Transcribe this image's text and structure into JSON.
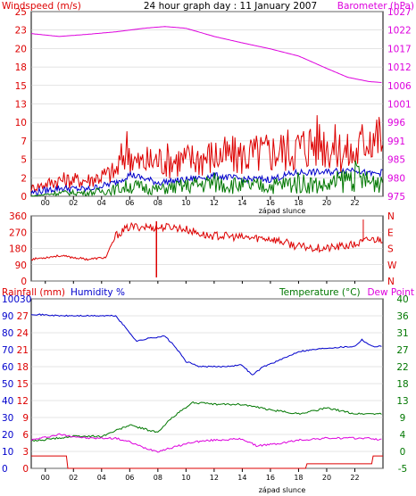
{
  "title": "24 hour graph day : 11 January 2007",
  "colors": {
    "red": "#dd0000",
    "magenta": "#dd00dd",
    "blue": "#0000cc",
    "green": "#007700",
    "axis": "#000000",
    "grid": "#c8c8c8"
  },
  "chart_data": [
    {
      "type": "line",
      "name": "wind-barometer",
      "labels": {
        "left": "Windspeed (m/s)",
        "right": "Barometer (hPa)",
        "center": "24 hour graph day : 11 January 2007"
      },
      "x_ticks": [
        "00",
        "02",
        "04",
        "06",
        "08",
        "10",
        "12",
        "14",
        "16",
        "18",
        "20",
        "22"
      ],
      "x_annotation": "západ slunce",
      "y_left_ticks": [
        "0",
        "2",
        "5",
        "7",
        "10",
        "13",
        "15",
        "18",
        "20",
        "23",
        "25"
      ],
      "y_left_range": [
        0,
        27
      ],
      "y_right_ticks": [
        "975",
        "980",
        "985",
        "991",
        "996",
        "1001",
        "1006",
        "1012",
        "1017",
        "1022",
        "1027"
      ],
      "y_right_range": [
        975,
        1027
      ],
      "hour_range": [
        -1,
        24
      ],
      "series": [
        {
          "name": "barometer",
          "color": "#dd00dd",
          "axis": "right",
          "hours": [
            -1,
            1,
            3,
            5,
            7,
            8.5,
            10,
            12,
            14,
            16,
            18,
            20,
            21.5,
            23,
            24
          ],
          "values": [
            1020.8,
            1020,
            1020.6,
            1021.3,
            1022.3,
            1022.8,
            1022.3,
            1020,
            1018.2,
            1016.5,
            1014.5,
            1011,
            1008.5,
            1007.3,
            1007
          ]
        },
        {
          "name": "gust",
          "color": "#dd0000",
          "axis": "left",
          "hours": [
            -1,
            1,
            3,
            5,
            5.8,
            6.5,
            8,
            10,
            12,
            14,
            16,
            18,
            19.5,
            20.5,
            22,
            23,
            24
          ],
          "values": [
            1,
            2,
            2,
            3,
            6,
            4,
            4.5,
            4.5,
            5,
            5,
            5.5,
            6,
            7,
            6,
            5,
            8,
            7
          ]
        },
        {
          "name": "average",
          "color": "#0000cc",
          "axis": "left",
          "hours": [
            -1,
            1,
            3,
            5,
            6,
            8,
            10,
            12,
            14,
            16,
            18,
            20,
            22,
            23,
            24
          ],
          "values": [
            0.5,
            1.2,
            1,
            2,
            3.2,
            2,
            2.4,
            3,
            2.5,
            2.5,
            3.5,
            3.5,
            4,
            3.2,
            3.5
          ]
        },
        {
          "name": "min",
          "color": "#007700",
          "axis": "left",
          "hours": [
            -1,
            1,
            3,
            5,
            6,
            8,
            10,
            12,
            14,
            16,
            18,
            20,
            22,
            23,
            24
          ],
          "values": [
            0,
            0.5,
            0.5,
            1,
            1.5,
            1,
            1.5,
            2,
            1.5,
            1.5,
            2,
            1.5,
            3,
            2,
            2.5
          ]
        }
      ]
    },
    {
      "type": "scatter",
      "name": "wind-direction",
      "y_left_ticks": [
        "0",
        "90",
        "180",
        "270",
        "360"
      ],
      "y_range": [
        0,
        360
      ],
      "y_right_ticks": [
        "N",
        "W",
        "S",
        "E",
        "N"
      ],
      "x_annotation": "",
      "series": [
        {
          "name": "direction",
          "color": "#dd0000",
          "hours": [
            -1,
            1,
            3,
            4.3,
            5,
            6,
            7,
            8,
            9,
            10,
            11.5,
            12.5,
            14,
            16,
            18,
            20,
            22,
            23,
            24
          ],
          "values": [
            120,
            140,
            120,
            130,
            250,
            300,
            300,
            295,
            300,
            285,
            250,
            250,
            240,
            235,
            190,
            180,
            200,
            230,
            230
          ]
        }
      ]
    },
    {
      "type": "line",
      "name": "temperature-humidity",
      "labels": {
        "left": "Rainfall (mm)",
        "left2": "Humidity %",
        "right": "Temperature (°C)",
        "right2": "Dew Point"
      },
      "x_ticks": [
        "00",
        "02",
        "04",
        "06",
        "08",
        "10",
        "12",
        "14",
        "16",
        "18",
        "20",
        "22"
      ],
      "x_annotation": "západ slunce",
      "y_left_ticks": [
        "0",
        "10",
        "20",
        "30",
        "40",
        "50",
        "60",
        "70",
        "80",
        "90",
        "100"
      ],
      "y_left2_ticks": [
        "0",
        "3",
        "6",
        "9",
        "12",
        "15",
        "18",
        "21",
        "24",
        "27",
        "30"
      ],
      "y_right_ticks": [
        "-5",
        "0",
        "4",
        "9",
        "13",
        "18",
        "22",
        "27",
        "31",
        "36",
        "40"
      ],
      "series": [
        {
          "name": "humidity",
          "color": "#0000cc",
          "hours": [
            -1,
            1,
            3,
            5,
            5.6,
            6.5,
            7.5,
            8.5,
            9.2,
            10,
            11,
            12.5,
            14,
            14.7,
            15.5,
            17,
            18,
            20,
            22,
            22.5,
            23.2,
            24
          ],
          "values": [
            91,
            90,
            90,
            90,
            84,
            75,
            77,
            78,
            72,
            63,
            60,
            60,
            61,
            55,
            60,
            65,
            69,
            71,
            72,
            76,
            72,
            72
          ]
        },
        {
          "name": "temperature",
          "color": "#007700",
          "hours": [
            -1,
            2,
            4,
            6,
            8,
            9,
            10.5,
            12,
            14,
            16,
            18,
            20,
            22,
            24
          ],
          "values": [
            2.2,
            3.5,
            3.5,
            6.5,
            4.5,
            8.5,
            12.5,
            12,
            12,
            10.5,
            9.5,
            11,
            9.5,
            9.5
          ]
        },
        {
          "name": "dew-point",
          "color": "#dd00dd",
          "hours": [
            -1,
            1,
            3,
            5,
            6,
            7,
            8,
            9,
            10.5,
            12,
            14,
            15,
            16.5,
            18,
            20,
            22,
            23,
            24
          ],
          "values": [
            2.5,
            4,
            3,
            3,
            2,
            0.5,
            -0.5,
            0.5,
            2,
            2.5,
            2.8,
            1,
            1.5,
            2.5,
            3,
            3,
            3,
            2.5
          ]
        },
        {
          "name": "rainfall",
          "color": "#dd0000",
          "hours": [
            -1,
            1.5,
            1.6,
            18.5,
            18.6,
            23.2,
            23.3,
            24
          ],
          "values": [
            2.2,
            2.2,
            0,
            0,
            0.8,
            0.8,
            2.2,
            2.2
          ]
        }
      ]
    }
  ]
}
